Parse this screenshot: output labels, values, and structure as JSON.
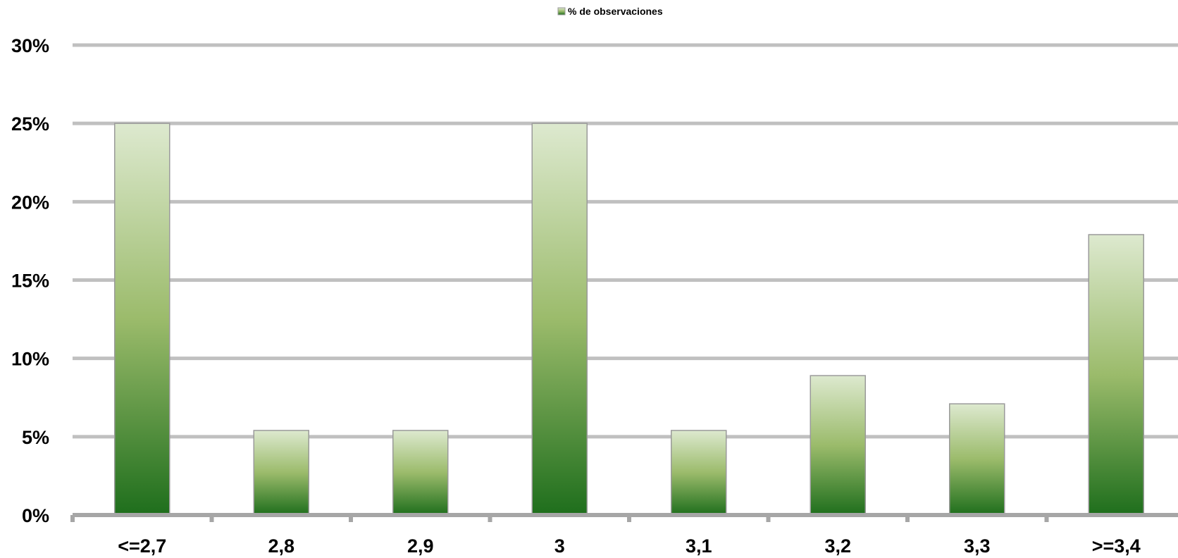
{
  "chart_data": {
    "type": "bar",
    "title": "",
    "xlabel": "",
    "ylabel": "",
    "legend": {
      "position": "top",
      "entries": [
        "% de observaciones"
      ]
    },
    "categories": [
      "<=2,7",
      "2,8",
      "2,9",
      "3",
      "3,1",
      "3,2",
      "3,3",
      ">=3,4"
    ],
    "series": [
      {
        "name": "% de observaciones",
        "values": [
          0.25,
          0.054,
          0.054,
          0.25,
          0.054,
          0.089,
          0.071,
          0.179
        ]
      }
    ],
    "ylim": [
      0,
      0.3
    ],
    "yticks": [
      0,
      0.05,
      0.1,
      0.15,
      0.2,
      0.25,
      0.3
    ],
    "ytick_labels": [
      "0%",
      "5%",
      "10%",
      "15%",
      "20%",
      "25%",
      "30%"
    ],
    "grid": true,
    "colors": {
      "bar_top": "#dde9cf",
      "bar_mid": "#9bbb6b",
      "bar_bottom": "#1e6e1c",
      "bar_border": "#9a9a9a",
      "grid": "#c0c0c0",
      "axis": "#a6a6a6"
    }
  }
}
